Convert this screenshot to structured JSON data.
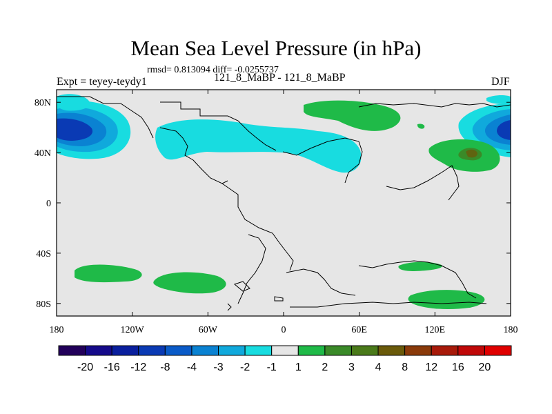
{
  "header": {
    "title": "Mean Sea Level Pressure (in hPa)",
    "stats": "rmsd= 0.813094 diff= -0.0255737",
    "left_label": "Expt = teyey-teydy1",
    "center_label": "121_8_MaBP - 121_8_MaBP",
    "season": "DJF"
  },
  "chart_data": {
    "type": "heatmap",
    "title": "Mean Sea Level Pressure (in hPa)",
    "x_ticks": [
      "180",
      "120W",
      "60W",
      "0",
      "60E",
      "120E",
      "180"
    ],
    "y_ticks": [
      "80N",
      "40N",
      "0",
      "40S",
      "80S"
    ],
    "colorbar": {
      "labels": [
        "-20",
        "-16",
        "-12",
        "-8",
        "-4",
        "-3",
        "-2",
        "-1",
        "1",
        "2",
        "3",
        "4",
        "8",
        "12",
        "16",
        "20"
      ],
      "colors": [
        "#22005a",
        "#150a8a",
        "#0a1f9e",
        "#0a3ab4",
        "#0a5bc8",
        "#0a82d2",
        "#10a9dc",
        "#18dce0",
        "#e6e6e6",
        "#1fba48",
        "#3a8a28",
        "#4a7a1a",
        "#6a5a0a",
        "#8a3a0a",
        "#a81a0a",
        "#c00808",
        "#e00000"
      ]
    },
    "anomaly_regions": [
      {
        "name": "North Pacific low",
        "sign": "negative",
        "peak": -8
      },
      {
        "name": "North Atlantic / Europe band",
        "sign": "negative",
        "peak": -2
      },
      {
        "name": "Arctic Siberia",
        "sign": "positive",
        "peak": 2
      },
      {
        "name": "Northwest Pacific high",
        "sign": "positive",
        "peak": 3
      },
      {
        "name": "Southern Ocean (Pacific)",
        "sign": "positive",
        "peak": 2
      },
      {
        "name": "Southern Ocean (Indian)",
        "sign": "positive",
        "peak": 2
      }
    ]
  }
}
